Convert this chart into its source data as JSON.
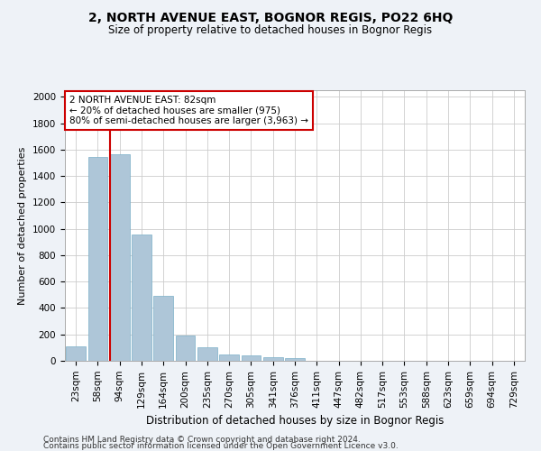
{
  "title": "2, NORTH AVENUE EAST, BOGNOR REGIS, PO22 6HQ",
  "subtitle": "Size of property relative to detached houses in Bognor Regis",
  "xlabel": "Distribution of detached houses by size in Bognor Regis",
  "ylabel": "Number of detached properties",
  "categories": [
    "23sqm",
    "58sqm",
    "94sqm",
    "129sqm",
    "164sqm",
    "200sqm",
    "235sqm",
    "270sqm",
    "305sqm",
    "341sqm",
    "376sqm",
    "411sqm",
    "447sqm",
    "482sqm",
    "517sqm",
    "553sqm",
    "588sqm",
    "623sqm",
    "659sqm",
    "694sqm",
    "729sqm"
  ],
  "values": [
    110,
    1545,
    1565,
    955,
    490,
    190,
    100,
    48,
    38,
    25,
    18,
    0,
    0,
    0,
    0,
    0,
    0,
    0,
    0,
    0,
    0
  ],
  "bar_color": "#aec6d8",
  "bar_edge_color": "#7aafc8",
  "vline_color": "#cc0000",
  "annotation_text": "2 NORTH AVENUE EAST: 82sqm\n← 20% of detached houses are smaller (975)\n80% of semi-detached houses are larger (3,963) →",
  "annotation_box_color": "#ffffff",
  "annotation_box_edge": "#cc0000",
  "ylim": [
    0,
    2050
  ],
  "yticks": [
    0,
    200,
    400,
    600,
    800,
    1000,
    1200,
    1400,
    1600,
    1800,
    2000
  ],
  "footer_line1": "Contains HM Land Registry data © Crown copyright and database right 2024.",
  "footer_line2": "Contains public sector information licensed under the Open Government Licence v3.0.",
  "bg_color": "#eef2f7",
  "plot_bg_color": "#ffffff",
  "title_fontsize": 10,
  "subtitle_fontsize": 8.5,
  "ylabel_fontsize": 8,
  "xlabel_fontsize": 8.5,
  "tick_fontsize": 7.5,
  "footer_fontsize": 6.5
}
